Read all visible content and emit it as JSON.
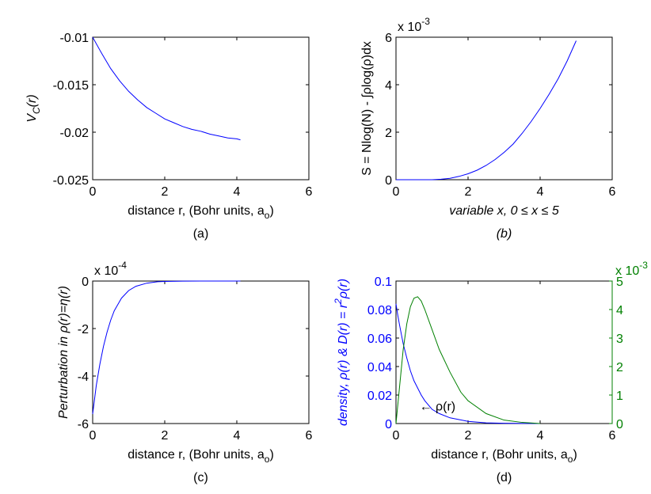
{
  "colors": {
    "blue": "#0000ff",
    "green": "#008000",
    "axis": "#000000"
  },
  "chart_data": [
    {
      "panel": "a",
      "type": "line",
      "caption": "(a)",
      "xlabel": "distance r, (Bohr units, a",
      "xlabel_sub": "o",
      "xlabel_end": ")",
      "ylabel": "V",
      "ylabel_sub": "C",
      "ylabel_end": "(r)",
      "xlim": [
        0,
        6
      ],
      "ylim": [
        -0.025,
        -0.01
      ],
      "xticks": [
        0,
        2,
        4,
        6
      ],
      "yticks": [
        -0.025,
        -0.02,
        -0.015,
        -0.01
      ],
      "xtick_labels": [
        "0",
        "2",
        "4",
        "6"
      ],
      "ytick_labels": [
        "-0.025",
        "-0.02",
        "-0.015",
        "-0.01"
      ],
      "exponent_label": "",
      "series": [
        {
          "color": "#0000ff",
          "x": [
            0,
            0.25,
            0.5,
            0.75,
            1.0,
            1.25,
            1.5,
            1.75,
            2.0,
            2.25,
            2.5,
            2.75,
            3.0,
            3.25,
            3.5,
            3.75,
            4.0,
            4.1
          ],
          "y": [
            -0.01,
            -0.0117,
            -0.0133,
            -0.0146,
            -0.0157,
            -0.0166,
            -0.0174,
            -0.018,
            -0.0186,
            -0.019,
            -0.0194,
            -0.0197,
            -0.0199,
            -0.0202,
            -0.0204,
            -0.0206,
            -0.0207,
            -0.0208
          ]
        }
      ]
    },
    {
      "panel": "b",
      "type": "line",
      "caption": "(b)",
      "xlabel": "variable x, 0 ≤ x ≤ 5",
      "xlabel_italic": true,
      "ylabel": "S = Nlog(N) - ∫ρlog(ρ)dx",
      "xlim": [
        0,
        6
      ],
      "ylim": [
        0,
        6
      ],
      "xticks": [
        0,
        2,
        4,
        6
      ],
      "yticks": [
        0,
        2,
        4,
        6
      ],
      "xtick_labels": [
        "0",
        "2",
        "4",
        "6"
      ],
      "ytick_labels": [
        "0",
        "2",
        "4",
        "6"
      ],
      "exponent_label": "x 10",
      "exponent_power": "-3",
      "series": [
        {
          "color": "#0000ff",
          "x": [
            0,
            0.5,
            1.0,
            1.25,
            1.5,
            1.75,
            2.0,
            2.25,
            2.5,
            2.75,
            3.0,
            3.25,
            3.5,
            3.75,
            4.0,
            4.25,
            4.5,
            4.75,
            5.0
          ],
          "y": [
            0,
            0,
            0,
            0.02,
            0.06,
            0.14,
            0.25,
            0.4,
            0.6,
            0.85,
            1.15,
            1.5,
            1.95,
            2.45,
            3.0,
            3.6,
            4.25,
            5.0,
            5.85
          ]
        }
      ]
    },
    {
      "panel": "c",
      "type": "line",
      "caption": "(c)",
      "xlabel": "distance r, (Bohr units, a",
      "xlabel_sub": "o",
      "xlabel_end": ")",
      "ylabel": "Perturbation in ρ(r)=η(r)",
      "ylabel_italic": true,
      "xlim": [
        0,
        6
      ],
      "ylim": [
        -6,
        0
      ],
      "xticks": [
        0,
        2,
        4,
        6
      ],
      "yticks": [
        -6,
        -4,
        -2,
        0
      ],
      "xtick_labels": [
        "0",
        "2",
        "4",
        "6"
      ],
      "ytick_labels": [
        "-6",
        "-4",
        "-2",
        "0"
      ],
      "exponent_label": "x 10",
      "exponent_power": "-4",
      "series": [
        {
          "color": "#0000ff",
          "x": [
            0,
            0.05,
            0.1,
            0.2,
            0.3,
            0.4,
            0.5,
            0.6,
            0.8,
            1.0,
            1.2,
            1.5,
            1.8,
            2.0,
            2.5,
            3.0,
            3.5,
            4.0,
            4.1
          ],
          "y": [
            -5.6,
            -5.0,
            -4.4,
            -3.5,
            -2.75,
            -2.15,
            -1.65,
            -1.25,
            -0.72,
            -0.4,
            -0.22,
            -0.09,
            -0.03,
            -0.015,
            -0.004,
            -0.001,
            0,
            0,
            0
          ]
        }
      ]
    },
    {
      "panel": "d",
      "type": "line",
      "caption": "(d)",
      "xlabel": "distance r, (Bohr units, a",
      "xlabel_sub": "o",
      "xlabel_end": ")",
      "ylabel": "density, ρ(r) & D(r) = r",
      "ylabel_sup": "2",
      "ylabel_end": "ρ(r)",
      "ylabel_italic": true,
      "ylabel_color": "#0000ff",
      "xlim": [
        0,
        6
      ],
      "ylim": [
        0,
        0.1
      ],
      "xticks": [
        0,
        2,
        4,
        6
      ],
      "yticks": [
        0,
        0.02,
        0.04,
        0.06,
        0.08,
        0.1
      ],
      "xtick_labels": [
        "0",
        "2",
        "4",
        "6"
      ],
      "ytick_labels": [
        "0",
        "0.02",
        "0.04",
        "0.06",
        "0.08",
        "0.1"
      ],
      "y2lim": [
        0,
        5
      ],
      "y2ticks": [
        0,
        1,
        2,
        3,
        4,
        5
      ],
      "y2tick_labels": [
        "0",
        "1",
        "2",
        "3",
        "4",
        "5"
      ],
      "y2_exponent_label": "x 10",
      "y2_exponent_power": "-3",
      "annotation": "← ρ(r)",
      "annotation_at": {
        "x": 0.65,
        "y": 0.0125
      },
      "series": [
        {
          "axis": "left",
          "color": "#0000ff",
          "x": [
            0,
            0.05,
            0.1,
            0.2,
            0.3,
            0.4,
            0.5,
            0.6,
            0.7,
            0.8,
            1.0,
            1.2,
            1.5,
            2.0,
            2.5,
            3.0,
            4.0
          ],
          "y": [
            0.084,
            0.076,
            0.069,
            0.056,
            0.046,
            0.037,
            0.03,
            0.025,
            0.02,
            0.016,
            0.01,
            0.007,
            0.004,
            0.0015,
            0.0005,
            0.0002,
            0
          ]
        },
        {
          "axis": "right",
          "color": "#008000",
          "x": [
            0,
            0.1,
            0.2,
            0.3,
            0.4,
            0.5,
            0.6,
            0.7,
            0.8,
            1.0,
            1.2,
            1.5,
            1.8,
            2.0,
            2.5,
            3.0,
            3.5,
            4.0
          ],
          "y": [
            0,
            1.3,
            2.6,
            3.5,
            4.1,
            4.4,
            4.45,
            4.3,
            4.0,
            3.3,
            2.6,
            1.8,
            1.1,
            0.8,
            0.35,
            0.12,
            0.04,
            0
          ]
        }
      ]
    }
  ]
}
